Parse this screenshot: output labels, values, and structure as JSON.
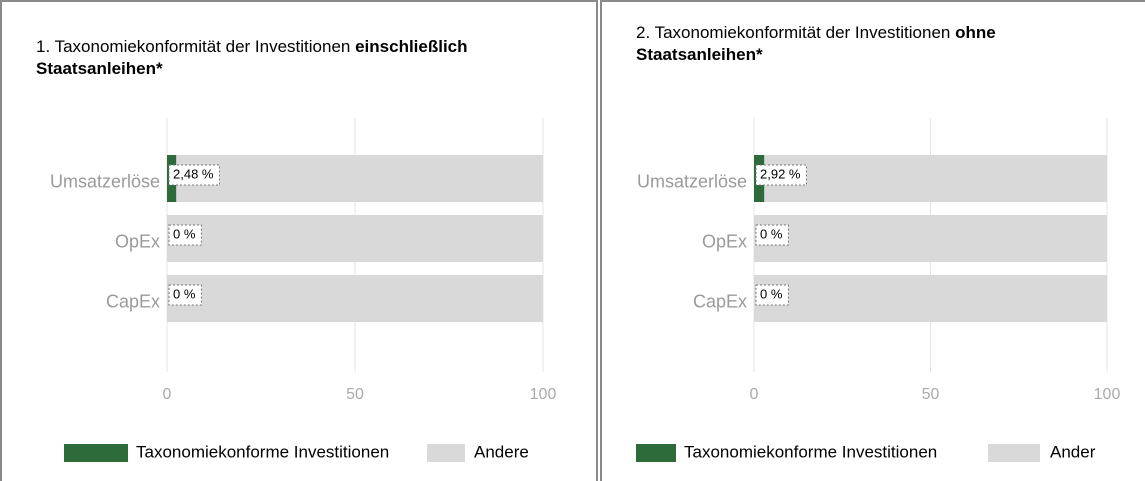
{
  "chart_data": [
    {
      "type": "barh_stacked",
      "title": [
        "1. Taxonomiekonformität der Investitionen",
        "einschließlich Staatsanleihen*"
      ],
      "categories": [
        "Umsatzerlöse",
        "OpEx",
        "CapEx"
      ],
      "series": [
        {
          "name": "Taxonomiekonforme Investitionen",
          "color": "#2e6b3a",
          "values": [
            2.48,
            0,
            0
          ],
          "value_labels": [
            "2,48 %",
            "0 %",
            "0 %"
          ]
        },
        {
          "name": "Andere",
          "color": "#d9d9d9",
          "values": [
            97.52,
            100,
            100
          ]
        }
      ],
      "xlim": [
        0,
        100
      ],
      "xticks": [
        0,
        50,
        100
      ],
      "grid": true
    },
    {
      "type": "barh_stacked",
      "title": [
        "2. Taxonomiekonformität der Investitionen",
        "ohne Staatsanleihen*"
      ],
      "categories": [
        "Umsatzerlöse",
        "OpEx",
        "CapEx"
      ],
      "series": [
        {
          "name": "Taxonomiekonforme Investitionen",
          "color": "#2e6b3a",
          "values": [
            2.92,
            0,
            0
          ],
          "value_labels": [
            "2,92 %",
            "0 %",
            "0 %"
          ]
        },
        {
          "name": "Ander",
          "color": "#d9d9d9",
          "values": [
            97.08,
            100,
            100
          ]
        }
      ],
      "xlim": [
        0,
        100
      ],
      "xticks": [
        0,
        50,
        100
      ],
      "grid": true
    }
  ]
}
